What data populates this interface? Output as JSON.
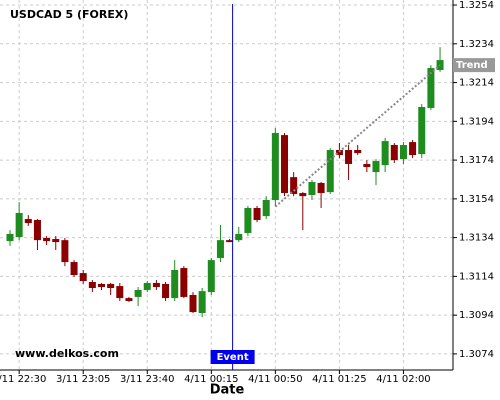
{
  "chart_data": {
    "type": "candlestick",
    "title": "USDCAD 5 (FOREX)",
    "xlabel": "Date",
    "watermark": "www.delkos.com",
    "categories": [
      null,
      "3/11 22:30",
      null,
      null,
      null,
      null,
      null,
      null,
      "3/11 23:05",
      null,
      null,
      null,
      null,
      null,
      null,
      "3/11 23:40",
      null,
      null,
      null,
      null,
      null,
      null,
      "4/11 00:15",
      null,
      null,
      null,
      null,
      null,
      null,
      "4/11 00:50",
      null,
      null,
      null,
      null,
      null,
      null,
      "4/11 01:25",
      null,
      null,
      null,
      null,
      null,
      null,
      "4/11 02:00",
      null,
      null,
      null,
      null
    ],
    "open": [
      1.31322,
      1.31343,
      1.31436,
      1.31431,
      1.31338,
      1.31333,
      1.31327,
      1.31214,
      1.31157,
      1.31111,
      1.31101,
      1.31101,
      1.3109,
      1.31028,
      1.31034,
      1.3107,
      1.31106,
      1.31101,
      1.31028,
      1.31183,
      1.31044,
      1.30951,
      1.31059,
      1.31235,
      1.31327,
      1.31327,
      1.31364,
      1.31493,
      1.31451,
      1.31534,
      1.31869,
      1.31652,
      1.3157,
      1.3156,
      1.31622,
      1.31575,
      1.31792,
      1.31792,
      1.31792,
      1.3172,
      1.31678,
      1.31714,
      1.31818,
      1.31745,
      1.31833,
      1.31771,
      1.32009,
      1.32205
    ],
    "high": [
      1.31379,
      1.31523,
      1.31456,
      1.31436,
      1.31348,
      1.31348,
      1.31338,
      1.31224,
      1.31173,
      1.31121,
      1.31106,
      1.31106,
      1.31106,
      1.31034,
      1.31085,
      1.31116,
      1.31121,
      1.31111,
      1.31224,
      1.31193,
      1.31059,
      1.3108,
      1.31235,
      1.31405,
      1.31333,
      1.31395,
      1.31503,
      1.31503,
      1.31554,
      1.31905,
      1.3188,
      1.31678,
      1.31575,
      1.31637,
      1.31627,
      1.31802,
      1.31828,
      1.31818,
      1.31818,
      1.3174,
      1.31745,
      1.31854,
      1.31828,
      1.31833,
      1.31844,
      1.32029,
      1.3223,
      1.32323
    ],
    "low": [
      1.31297,
      1.31327,
      1.314,
      1.31276,
      1.31302,
      1.31276,
      1.31193,
      1.31137,
      1.31101,
      1.31059,
      1.3107,
      1.31044,
      1.31013,
      1.31008,
      1.30987,
      1.31059,
      1.3107,
      1.31013,
      1.31013,
      1.31028,
      1.30951,
      1.3093,
      1.31044,
      1.31214,
      1.31317,
      1.31317,
      1.31348,
      1.3142,
      1.31436,
      1.31503,
      1.31554,
      1.31554,
      1.31379,
      1.31534,
      1.31493,
      1.31565,
      1.3175,
      1.31637,
      1.31766,
      1.31678,
      1.31611,
      1.31678,
      1.31725,
      1.3172,
      1.3175,
      1.3175,
      1.31999,
      1.32195
    ],
    "close": [
      1.31359,
      1.31467,
      1.31415,
      1.31327,
      1.31322,
      1.31317,
      1.31214,
      1.31147,
      1.31116,
      1.3108,
      1.31085,
      1.3108,
      1.31028,
      1.31013,
      1.3107,
      1.31106,
      1.31085,
      1.31028,
      1.31173,
      1.31034,
      1.30956,
      1.31064,
      1.31224,
      1.31327,
      1.31317,
      1.31359,
      1.31493,
      1.31431,
      1.31534,
      1.3188,
      1.3157,
      1.31565,
      1.31554,
      1.31627,
      1.3157,
      1.31792,
      1.31766,
      1.3172,
      1.31776,
      1.31704,
      1.31735,
      1.31838,
      1.3174,
      1.31818,
      1.31766,
      1.32014,
      1.32215,
      1.32256
    ],
    "up_color": "#1e8c1e",
    "down_color": "#8b0000",
    "ylim": [
      1.30657,
      1.32566
    ],
    "yticks": [
      1.3254,
      1.3234,
      1.3214,
      1.3194,
      1.3174,
      1.3154,
      1.3134,
      1.3114,
      1.3094,
      1.3074
    ],
    "grid": true,
    "event": {
      "label": "Event",
      "index": 24
    },
    "trend": {
      "label": "Trend",
      "start_index": 29,
      "start_value": 1.315,
      "end_index": 47,
      "end_value": 1.3223
    }
  }
}
